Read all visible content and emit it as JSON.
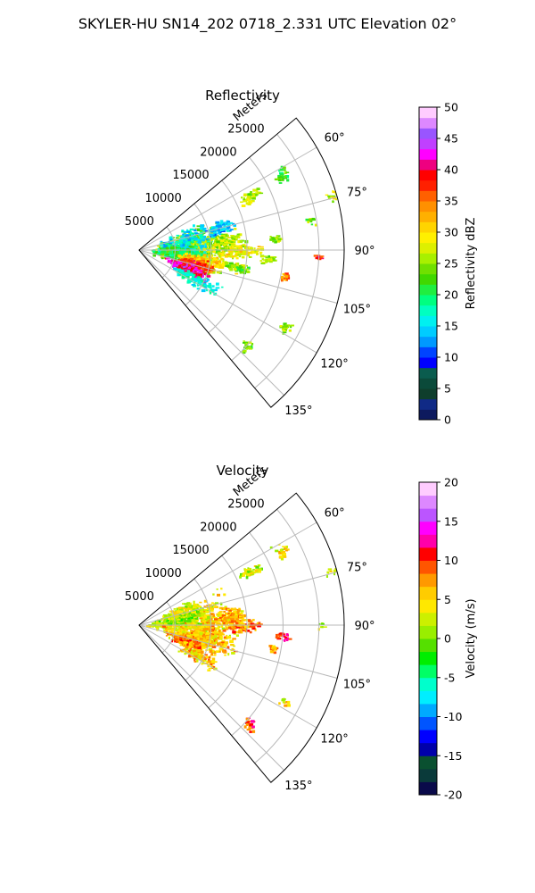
{
  "suptitle": "SKYLER-HU  SN14_202  0718_2.331 UTC Elevation 02°",
  "panels": [
    {
      "title": "Reflectivity",
      "radial_axis_label": "Meters",
      "colorbar_label": "Reflectivity dBZ",
      "colormap": [
        "#0d1a5e",
        "#102a86",
        "#0f3e2c",
        "#0b4a3a",
        "#0a5c4e",
        "#0000ff",
        "#0044ff",
        "#0099ff",
        "#00ccff",
        "#00f0f0",
        "#00ffc0",
        "#00ff80",
        "#20ee40",
        "#40d800",
        "#70e000",
        "#a8f000",
        "#ddf000",
        "#fff000",
        "#ffd400",
        "#ffb000",
        "#ff9000",
        "#ff6000",
        "#ff2000",
        "#ff0000",
        "#ee0080",
        "#ff00ff",
        "#c040ff",
        "#9955ff",
        "#dd88ff",
        "#ffccff"
      ]
    },
    {
      "title": "Velocity",
      "radial_axis_label": "Meters",
      "colorbar_label": "Velocity (m/s)",
      "colormap": [
        "#0a0a4a",
        "#0a3a3a",
        "#0a5030",
        "#0000aa",
        "#0000ff",
        "#0055ff",
        "#00aaff",
        "#00eeff",
        "#00ffcc",
        "#00ff66",
        "#00ee00",
        "#55e000",
        "#99ee00",
        "#ccf000",
        "#ffe800",
        "#ffcc00",
        "#ff9900",
        "#ff5500",
        "#ff0000",
        "#ff00aa",
        "#ff00ff",
        "#bb55ff",
        "#dd88ff",
        "#ffccff"
      ]
    }
  ],
  "chart_data": [
    {
      "type": "polar_sector",
      "title": "Reflectivity",
      "radial_label": "Meters",
      "radial_ticks": [
        "5000",
        "10000",
        "15000",
        "20000",
        "25000"
      ],
      "radial_tick_values": [
        5000,
        10000,
        15000,
        20000,
        25000
      ],
      "rlim": [
        0,
        28500
      ],
      "angle_ticks": [
        "60°",
        "75°",
        "90°",
        "105°",
        "120°",
        "135°"
      ],
      "angle_tick_values": [
        60,
        75,
        90,
        105,
        120,
        135
      ],
      "theta_range": [
        50,
        140
      ],
      "colorbar": {
        "label": "Reflectivity dBZ",
        "ticks": [
          "0",
          "5",
          "10",
          "15",
          "20",
          "25",
          "30",
          "35",
          "40",
          "45",
          "50"
        ],
        "range": [
          0,
          50
        ]
      },
      "grid": true
    },
    {
      "type": "polar_sector",
      "title": "Velocity",
      "radial_label": "Meters",
      "radial_ticks": [
        "5000",
        "10000",
        "15000",
        "20000",
        "25000"
      ],
      "radial_tick_values": [
        5000,
        10000,
        15000,
        20000,
        25000
      ],
      "rlim": [
        0,
        28500
      ],
      "angle_ticks": [
        "60°",
        "75°",
        "90°",
        "105°",
        "120°",
        "135°"
      ],
      "angle_tick_values": [
        60,
        75,
        90,
        105,
        120,
        135
      ],
      "theta_range": [
        50,
        140
      ],
      "colorbar": {
        "label": "Velocity (m/s)",
        "ticks": [
          "-20",
          "-15",
          "-10",
          "-5",
          "0",
          "5",
          "10",
          "15",
          "20"
        ],
        "range": [
          -20,
          20
        ]
      },
      "grid": true
    }
  ]
}
